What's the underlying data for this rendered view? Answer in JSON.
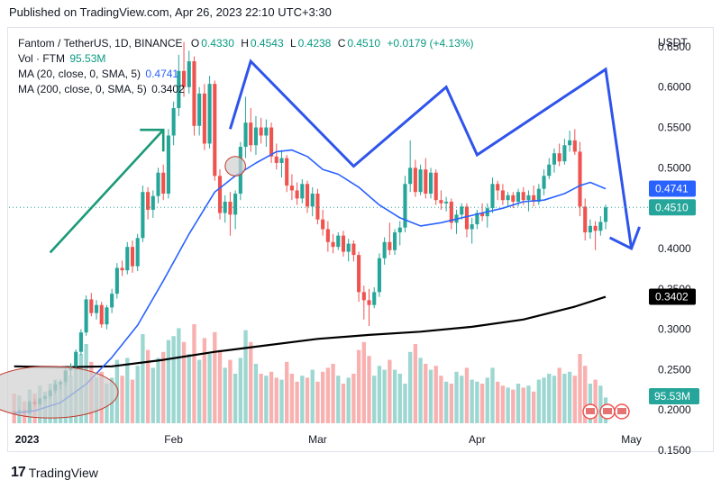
{
  "header": {
    "published": "Published on TradingView.com, Apr 26, 2023 22:10 UTC+3:30"
  },
  "legend": {
    "symbol": "Fantom / TetherUS, 1D, BINANCE",
    "o_label": "O",
    "o": "0.4330",
    "h_label": "H",
    "h": "0.4543",
    "l_label": "L",
    "l": "0.4238",
    "c_label": "C",
    "c": "0.4510",
    "change": "+0.0179 (+4.13%)",
    "vol_label": "Vol · FTM",
    "vol": "95.53M",
    "ma20_label": "MA (20, close, 0, SMA, 5)",
    "ma20": "0.4741",
    "ma200_label": "MA (200, close, 0, SMA, 5)",
    "ma200": "0.3402"
  },
  "axis": {
    "currency": "USDT",
    "y_ticks": [
      "0.6500",
      "0.6000",
      "0.5500",
      "0.5000",
      "0.4000",
      "0.3500",
      "0.3000",
      "0.2500",
      "0.2000",
      "0.1500"
    ],
    "x_ticks": [
      "2023",
      "Feb",
      "Mar",
      "Apr",
      "May"
    ]
  },
  "badges": {
    "ma20": "0.4741",
    "price": "0.4510",
    "ma200": "0.3402",
    "volume": "95.53M"
  },
  "footer": {
    "logo_text": "TradingView",
    "logo_mark": "17"
  },
  "colors": {
    "up": "#26a69a",
    "down": "#ef5350",
    "ma20": "#2962ff",
    "ma200": "#000000",
    "annotation_green": "#1a9a78",
    "annotation_blue": "#2f54eb",
    "circle_fill": "#d0d0d0",
    "circle_stroke": "#c0392b"
  },
  "chart_data": {
    "type": "candlestick",
    "title": "Fantom / TetherUS, 1D, BINANCE",
    "x_range": [
      "2022-12-31",
      "2023-05-03"
    ],
    "ylim": [
      0.15,
      0.67
    ],
    "ohlc": [
      [
        "2023-01-01",
        0.198,
        0.2,
        0.195,
        0.197
      ],
      [
        "2023-01-02",
        0.197,
        0.201,
        0.195,
        0.199
      ],
      [
        "2023-01-03",
        0.199,
        0.2,
        0.194,
        0.196
      ],
      [
        "2023-01-04",
        0.196,
        0.212,
        0.195,
        0.21
      ],
      [
        "2023-01-05",
        0.21,
        0.214,
        0.205,
        0.207
      ],
      [
        "2023-01-06",
        0.207,
        0.216,
        0.204,
        0.214
      ],
      [
        "2023-01-07",
        0.214,
        0.219,
        0.211,
        0.217
      ],
      [
        "2023-01-08",
        0.217,
        0.226,
        0.214,
        0.224
      ],
      [
        "2023-01-09",
        0.224,
        0.236,
        0.22,
        0.232
      ],
      [
        "2023-01-10",
        0.232,
        0.238,
        0.226,
        0.235
      ],
      [
        "2023-01-11",
        0.235,
        0.252,
        0.23,
        0.249
      ],
      [
        "2023-01-12",
        0.249,
        0.258,
        0.242,
        0.254
      ],
      [
        "2023-01-13",
        0.254,
        0.275,
        0.25,
        0.272
      ],
      [
        "2023-01-14",
        0.272,
        0.3,
        0.268,
        0.296
      ],
      [
        "2023-01-15",
        0.296,
        0.342,
        0.292,
        0.337
      ],
      [
        "2023-01-16",
        0.337,
        0.345,
        0.316,
        0.32
      ],
      [
        "2023-01-17",
        0.32,
        0.336,
        0.312,
        0.33
      ],
      [
        "2023-01-18",
        0.33,
        0.334,
        0.302,
        0.306
      ],
      [
        "2023-01-19",
        0.306,
        0.33,
        0.3,
        0.327
      ],
      [
        "2023-01-20",
        0.327,
        0.35,
        0.32,
        0.344
      ],
      [
        "2023-01-21",
        0.344,
        0.382,
        0.338,
        0.376
      ],
      [
        "2023-01-22",
        0.376,
        0.385,
        0.366,
        0.373
      ],
      [
        "2023-01-23",
        0.373,
        0.408,
        0.368,
        0.402
      ],
      [
        "2023-01-24",
        0.402,
        0.41,
        0.37,
        0.378
      ],
      [
        "2023-01-25",
        0.378,
        0.418,
        0.372,
        0.413
      ],
      [
        "2023-01-26",
        0.413,
        0.478,
        0.408,
        0.47
      ],
      [
        "2023-01-27",
        0.47,
        0.476,
        0.436,
        0.448
      ],
      [
        "2023-01-28",
        0.448,
        0.472,
        0.438,
        0.465
      ],
      [
        "2023-01-29",
        0.465,
        0.5,
        0.456,
        0.494
      ],
      [
        "2023-01-30",
        0.494,
        0.504,
        0.46,
        0.468
      ],
      [
        "2023-01-31",
        0.468,
        0.548,
        0.462,
        0.54
      ],
      [
        "2023-02-01",
        0.54,
        0.582,
        0.528,
        0.574
      ],
      [
        "2023-02-02",
        0.574,
        0.64,
        0.564,
        0.62
      ],
      [
        "2023-02-03",
        0.62,
        0.656,
        0.588,
        0.6
      ],
      [
        "2023-02-04",
        0.6,
        0.645,
        0.592,
        0.632
      ],
      [
        "2023-02-05",
        0.632,
        0.638,
        0.54,
        0.552
      ],
      [
        "2023-02-06",
        0.552,
        0.6,
        0.54,
        0.592
      ],
      [
        "2023-02-07",
        0.592,
        0.604,
        0.522,
        0.53
      ],
      [
        "2023-02-08",
        0.53,
        0.614,
        0.524,
        0.604
      ],
      [
        "2023-02-09",
        0.604,
        0.608,
        0.484,
        0.49
      ],
      [
        "2023-02-10",
        0.49,
        0.498,
        0.436,
        0.444
      ],
      [
        "2023-02-11",
        0.444,
        0.466,
        0.432,
        0.458
      ],
      [
        "2023-02-12",
        0.458,
        0.47,
        0.416,
        0.442
      ],
      [
        "2023-02-13",
        0.442,
        0.472,
        0.424,
        0.468
      ],
      [
        "2023-02-14",
        0.468,
        0.532,
        0.46,
        0.526
      ],
      [
        "2023-02-15",
        0.526,
        0.588,
        0.512,
        0.556
      ],
      [
        "2023-02-16",
        0.556,
        0.574,
        0.52,
        0.528
      ],
      [
        "2023-02-17",
        0.528,
        0.564,
        0.516,
        0.55
      ],
      [
        "2023-02-18",
        0.55,
        0.562,
        0.53,
        0.54
      ],
      [
        "2023-02-19",
        0.54,
        0.56,
        0.526,
        0.55
      ],
      [
        "2023-02-20",
        0.55,
        0.556,
        0.506,
        0.514
      ],
      [
        "2023-02-21",
        0.514,
        0.53,
        0.498,
        0.506
      ],
      [
        "2023-02-22",
        0.506,
        0.522,
        0.488,
        0.512
      ],
      [
        "2023-02-23",
        0.512,
        0.516,
        0.47,
        0.478
      ],
      [
        "2023-02-24",
        0.478,
        0.492,
        0.46,
        0.472
      ],
      [
        "2023-02-25",
        0.472,
        0.482,
        0.454,
        0.462
      ],
      [
        "2023-02-26",
        0.462,
        0.486,
        0.456,
        0.48
      ],
      [
        "2023-02-27",
        0.48,
        0.484,
        0.444,
        0.452
      ],
      [
        "2023-02-28",
        0.452,
        0.476,
        0.44,
        0.468
      ],
      [
        "2023-03-01",
        0.468,
        0.474,
        0.43,
        0.436
      ],
      [
        "2023-03-02",
        0.436,
        0.448,
        0.416,
        0.424
      ],
      [
        "2023-03-03",
        0.424,
        0.434,
        0.396,
        0.408
      ],
      [
        "2023-03-04",
        0.408,
        0.418,
        0.394,
        0.402
      ],
      [
        "2023-03-05",
        0.402,
        0.42,
        0.398,
        0.416
      ],
      [
        "2023-03-06",
        0.416,
        0.422,
        0.39,
        0.396
      ],
      [
        "2023-03-07",
        0.396,
        0.412,
        0.384,
        0.406
      ],
      [
        "2023-03-08",
        0.406,
        0.41,
        0.384,
        0.392
      ],
      [
        "2023-03-09",
        0.392,
        0.396,
        0.334,
        0.346
      ],
      [
        "2023-03-10",
        0.346,
        0.354,
        0.312,
        0.336
      ],
      [
        "2023-03-11",
        0.336,
        0.35,
        0.304,
        0.33
      ],
      [
        "2023-03-12",
        0.33,
        0.352,
        0.326,
        0.346
      ],
      [
        "2023-03-13",
        0.346,
        0.394,
        0.34,
        0.388
      ],
      [
        "2023-03-14",
        0.388,
        0.414,
        0.38,
        0.408
      ],
      [
        "2023-03-15",
        0.408,
        0.432,
        0.392,
        0.398
      ],
      [
        "2023-03-16",
        0.398,
        0.424,
        0.392,
        0.42
      ],
      [
        "2023-03-17",
        0.42,
        0.434,
        0.404,
        0.426
      ],
      [
        "2023-03-18",
        0.426,
        0.49,
        0.42,
        0.48
      ],
      [
        "2023-03-19",
        0.48,
        0.534,
        0.47,
        0.5
      ],
      [
        "2023-03-20",
        0.5,
        0.51,
        0.464,
        0.47
      ],
      [
        "2023-03-21",
        0.47,
        0.504,
        0.466,
        0.498
      ],
      [
        "2023-03-22",
        0.498,
        0.512,
        0.462,
        0.468
      ],
      [
        "2023-03-23",
        0.468,
        0.5,
        0.462,
        0.494
      ],
      [
        "2023-03-24",
        0.494,
        0.498,
        0.454,
        0.46
      ],
      [
        "2023-03-25",
        0.46,
        0.472,
        0.448,
        0.456
      ],
      [
        "2023-03-26",
        0.456,
        0.464,
        0.446,
        0.458
      ],
      [
        "2023-03-27",
        0.458,
        0.462,
        0.424,
        0.432
      ],
      [
        "2023-03-28",
        0.432,
        0.448,
        0.418,
        0.442
      ],
      [
        "2023-03-29",
        0.442,
        0.456,
        0.436,
        0.452
      ],
      [
        "2023-03-30",
        0.452,
        0.456,
        0.414,
        0.424
      ],
      [
        "2023-03-31",
        0.424,
        0.438,
        0.406,
        0.43
      ],
      [
        "2023-04-01",
        0.43,
        0.448,
        0.424,
        0.444
      ],
      [
        "2023-04-02",
        0.444,
        0.456,
        0.434,
        0.44
      ],
      [
        "2023-04-03",
        0.44,
        0.456,
        0.426,
        0.45
      ],
      [
        "2023-04-04",
        0.45,
        0.488,
        0.444,
        0.48
      ],
      [
        "2023-04-05",
        0.48,
        0.484,
        0.46,
        0.472
      ],
      [
        "2023-04-06",
        0.472,
        0.48,
        0.454,
        0.46
      ],
      [
        "2023-04-07",
        0.46,
        0.47,
        0.452,
        0.466
      ],
      [
        "2023-04-08",
        0.466,
        0.47,
        0.45,
        0.458
      ],
      [
        "2023-04-09",
        0.458,
        0.474,
        0.452,
        0.47
      ],
      [
        "2023-04-10",
        0.47,
        0.476,
        0.454,
        0.46
      ],
      [
        "2023-04-11",
        0.46,
        0.472,
        0.446,
        0.466
      ],
      [
        "2023-04-12",
        0.466,
        0.478,
        0.452,
        0.458
      ],
      [
        "2023-04-13",
        0.458,
        0.48,
        0.454,
        0.474
      ],
      [
        "2023-04-14",
        0.474,
        0.498,
        0.466,
        0.49
      ],
      [
        "2023-04-15",
        0.49,
        0.512,
        0.486,
        0.504
      ],
      [
        "2023-04-16",
        0.504,
        0.524,
        0.494,
        0.518
      ],
      [
        "2023-04-17",
        0.518,
        0.53,
        0.502,
        0.508
      ],
      [
        "2023-04-18",
        0.508,
        0.536,
        0.504,
        0.528
      ],
      [
        "2023-04-19",
        0.528,
        0.546,
        0.52,
        0.534
      ],
      [
        "2023-04-20",
        0.534,
        0.548,
        0.516,
        0.52
      ],
      [
        "2023-04-21",
        0.52,
        0.532,
        0.44,
        0.452
      ],
      [
        "2023-04-22",
        0.452,
        0.462,
        0.41,
        0.42
      ],
      [
        "2023-04-23",
        0.42,
        0.436,
        0.412,
        0.428
      ],
      [
        "2023-04-24",
        0.428,
        0.434,
        0.398,
        0.422
      ],
      [
        "2023-04-25",
        0.422,
        0.44,
        0.416,
        0.433
      ],
      [
        "2023-04-26",
        0.433,
        0.4543,
        0.4238,
        0.451
      ]
    ],
    "volume_relative": [
      0.3,
      0.28,
      0.22,
      0.34,
      0.3,
      0.38,
      0.32,
      0.4,
      0.44,
      0.42,
      0.5,
      0.48,
      0.58,
      0.7,
      0.8,
      0.62,
      0.46,
      0.52,
      0.4,
      0.46,
      0.64,
      0.48,
      0.66,
      0.44,
      0.58,
      0.9,
      0.74,
      0.56,
      0.66,
      0.72,
      0.84,
      0.88,
      0.96,
      0.82,
      0.7,
      1.0,
      0.64,
      0.86,
      0.7,
      0.92,
      0.74,
      0.56,
      0.64,
      0.5,
      0.66,
      0.94,
      0.82,
      0.6,
      0.5,
      0.48,
      0.52,
      0.46,
      0.44,
      0.62,
      0.5,
      0.42,
      0.48,
      0.46,
      0.54,
      0.42,
      0.52,
      0.56,
      0.6,
      0.48,
      0.4,
      0.46,
      0.5,
      0.74,
      0.82,
      0.68,
      0.48,
      0.58,
      0.54,
      0.64,
      0.54,
      0.5,
      0.4,
      0.72,
      0.8,
      0.66,
      0.6,
      0.54,
      0.58,
      0.48,
      0.42,
      0.4,
      0.52,
      0.48,
      0.56,
      0.44,
      0.42,
      0.4,
      0.46,
      0.56,
      0.42,
      0.38,
      0.36,
      0.34,
      0.4,
      0.36,
      0.38,
      0.32,
      0.44,
      0.46,
      0.5,
      0.48,
      0.56,
      0.5,
      0.52,
      0.48,
      0.7,
      0.58,
      0.4,
      0.44,
      0.38,
      0.26
    ],
    "ma20": [
      [
        1,
        0.196
      ],
      [
        5,
        0.199
      ],
      [
        10,
        0.209
      ],
      [
        15,
        0.232
      ],
      [
        20,
        0.265
      ],
      [
        25,
        0.305
      ],
      [
        30,
        0.36
      ],
      [
        35,
        0.418
      ],
      [
        40,
        0.47
      ],
      [
        44,
        0.49
      ],
      [
        48,
        0.506
      ],
      [
        52,
        0.52
      ],
      [
        55,
        0.522
      ],
      [
        58,
        0.514
      ],
      [
        61,
        0.498
      ],
      [
        64,
        0.492
      ],
      [
        68,
        0.476
      ],
      [
        72,
        0.454
      ],
      [
        76,
        0.438
      ],
      [
        80,
        0.428
      ],
      [
        84,
        0.432
      ],
      [
        88,
        0.438
      ],
      [
        92,
        0.444
      ],
      [
        96,
        0.45
      ],
      [
        100,
        0.458
      ],
      [
        104,
        0.46
      ],
      [
        108,
        0.468
      ],
      [
        111,
        0.478
      ],
      [
        113,
        0.482
      ],
      [
        116,
        0.4741
      ]
    ],
    "ma200": [
      [
        1,
        0.254
      ],
      [
        10,
        0.253
      ],
      [
        20,
        0.254
      ],
      [
        30,
        0.262
      ],
      [
        40,
        0.272
      ],
      [
        50,
        0.28
      ],
      [
        60,
        0.288
      ],
      [
        70,
        0.293
      ],
      [
        80,
        0.297
      ],
      [
        90,
        0.303
      ],
      [
        100,
        0.312
      ],
      [
        110,
        0.328
      ],
      [
        116,
        0.3402
      ]
    ],
    "annotations": [
      {
        "type": "arrow",
        "color": "green",
        "points": [
          [
            "2023-01-08",
            0.395
          ],
          [
            "2023-01-30",
            0.547
          ]
        ]
      },
      {
        "type": "polyline",
        "color": "blue",
        "points": [
          [
            "2023-02-12",
            0.548
          ],
          [
            "2023-02-16",
            0.632
          ],
          [
            "2023-03-08",
            0.502
          ],
          [
            "2023-03-26",
            0.6
          ],
          [
            "2023-04-01",
            0.516
          ],
          [
            "2023-04-26",
            0.622
          ],
          [
            "2023-05-01",
            0.4
          ]
        ]
      },
      {
        "type": "ellipse",
        "color": "grey",
        "center": [
          "2023-01-08",
          0.222
        ],
        "rx_days": 6,
        "ry_price": 0.032
      },
      {
        "type": "ellipse",
        "color": "grey",
        "center": [
          "2023-02-13",
          0.502
        ],
        "rx_days": 0.9,
        "ry_price": 0.012
      }
    ]
  }
}
